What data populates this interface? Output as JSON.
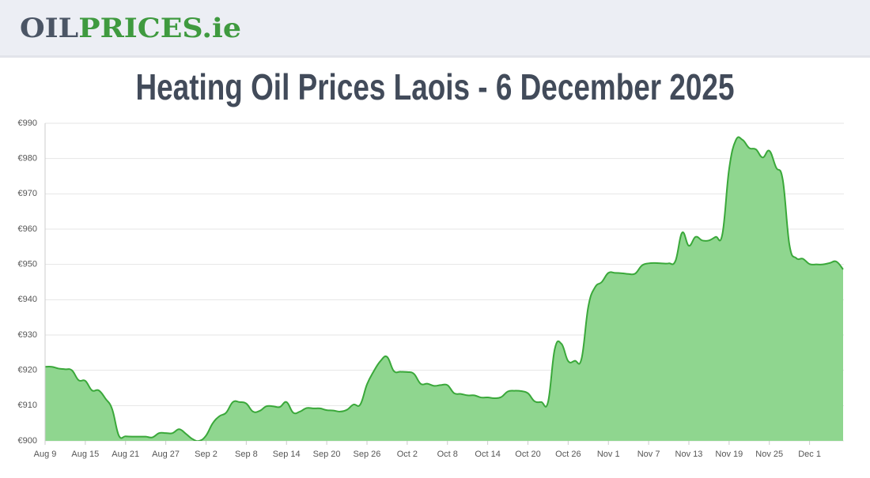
{
  "header": {
    "logo_left": "OIL",
    "logo_right": "PRICES.ie"
  },
  "chart_data": {
    "type": "line",
    "title": "Heating Oil Prices Laois - 6 December 2025",
    "categories": [
      "Aug 9",
      null,
      null,
      null,
      null,
      null,
      "Aug 15",
      null,
      null,
      null,
      null,
      null,
      "Aug 21",
      null,
      null,
      null,
      null,
      null,
      "Aug 27",
      null,
      null,
      null,
      null,
      null,
      "Sep 2",
      null,
      null,
      null,
      null,
      null,
      "Sep 8",
      null,
      null,
      null,
      null,
      null,
      "Sep 14",
      null,
      null,
      null,
      null,
      null,
      "Sep 20",
      null,
      null,
      null,
      null,
      null,
      "Sep 26",
      null,
      null,
      null,
      null,
      null,
      "Oct 2",
      null,
      null,
      null,
      null,
      null,
      "Oct 8",
      null,
      null,
      null,
      null,
      null,
      "Oct 14",
      null,
      null,
      null,
      null,
      null,
      "Oct 20",
      null,
      null,
      null,
      null,
      null,
      "Oct 26",
      null,
      null,
      null,
      null,
      null,
      "Nov 1",
      null,
      null,
      null,
      null,
      null,
      "Nov 7",
      null,
      null,
      null,
      null,
      null,
      "Nov 13",
      null,
      null,
      null,
      null,
      null,
      "Nov 19",
      null,
      null,
      null,
      null,
      null,
      "Nov 25",
      null,
      null,
      null,
      null,
      null,
      "Dec 1",
      null,
      null,
      null,
      null,
      null
    ],
    "values": [
      921,
      921,
      920.5,
      920.3,
      920,
      917.2,
      917,
      914.3,
      914.3,
      912,
      909,
      901.5,
      901.3,
      901.2,
      901.2,
      901.2,
      901,
      902.2,
      902.2,
      902.2,
      903.3,
      902,
      900.5,
      900,
      901.5,
      905,
      907,
      908,
      911,
      911,
      910.6,
      908.3,
      908.5,
      909.8,
      909.8,
      909.6,
      911,
      908,
      908.3,
      909.3,
      909.2,
      909.2,
      908.7,
      908.6,
      908.3,
      908.8,
      910.3,
      910.3,
      916,
      919.7,
      922.6,
      923.8,
      919.8,
      919.6,
      919.5,
      919,
      916.2,
      916.2,
      915.6,
      915.8,
      915.8,
      913.5,
      913.3,
      912.9,
      912.9,
      912.3,
      912.3,
      912.1,
      912.4,
      914,
      914.2,
      914.1,
      913.5,
      911.2,
      911,
      911,
      926,
      927.5,
      922.6,
      922.7,
      923.3,
      938,
      943.5,
      945,
      947.6,
      947.6,
      947.5,
      947.3,
      947.4,
      949.7,
      950.3,
      950.4,
      950.3,
      950.3,
      951,
      959,
      955.3,
      957.8,
      956.8,
      956.8,
      957.8,
      958.6,
      977,
      985.2,
      985.3,
      983,
      982.6,
      980.3,
      982.2,
      977.5,
      974,
      955.5,
      951.8,
      951.6,
      950.1,
      950,
      950,
      950.4,
      950.8,
      948.6
    ],
    "color": "#3aa83a",
    "fill_color": "#8fd68f",
    "ylim": [
      900,
      990
    ],
    "yticks": [
      {
        "value": 900,
        "label": "€900"
      },
      {
        "value": 910,
        "label": "€910"
      },
      {
        "value": 920,
        "label": "€920"
      },
      {
        "value": 930,
        "label": "€930"
      },
      {
        "value": 940,
        "label": "€940"
      },
      {
        "value": 950,
        "label": "€950"
      },
      {
        "value": 960,
        "label": "€960"
      },
      {
        "value": 970,
        "label": "€970"
      },
      {
        "value": 980,
        "label": "€980"
      },
      {
        "value": 990,
        "label": "€990"
      }
    ],
    "grid": true
  }
}
